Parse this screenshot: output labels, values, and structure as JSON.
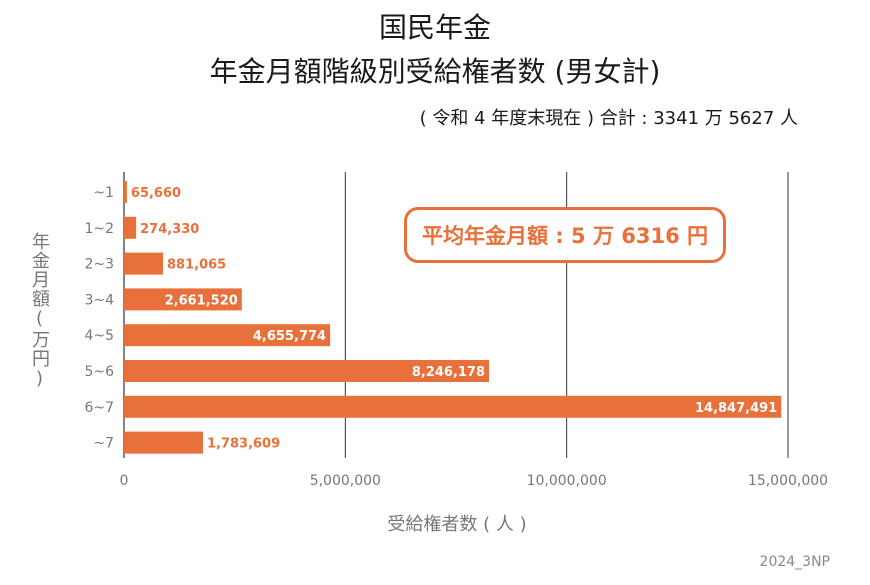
{
  "header": {
    "title_line1": "国民年金",
    "title_line2": "年金月額階級別受給権者数 (男女計)",
    "subtitle": "( 令和 4 年度末現在 ) 合計 : 3341 万 5627 人"
  },
  "callout": {
    "text": "平均年金月額 : 5 万 6316 円"
  },
  "source": "2024_3NP",
  "colors": {
    "bar": "#e8703a",
    "grid": "#333333",
    "axis_text": "#777777",
    "value_inside": "#ffffff"
  },
  "chart_data": {
    "type": "bar",
    "orientation": "horizontal",
    "categories": [
      "~1",
      "1~2",
      "2~3",
      "3~4",
      "4~5",
      "5~6",
      "6~7",
      "~7"
    ],
    "values": [
      65660,
      274330,
      881065,
      2661520,
      4655774,
      8246178,
      14847491,
      1783609
    ],
    "value_labels": [
      "65,660",
      "274,330",
      "881,065",
      "2,661,520",
      "4,655,774",
      "8,246,178",
      "14,847,491",
      "1,783,609"
    ],
    "xlim": [
      0,
      15000000
    ],
    "xticks": [
      0,
      5000000,
      10000000,
      15000000
    ],
    "xtick_labels": [
      "0",
      "5,000,000",
      "10,000,000",
      "15,000,000"
    ],
    "xlabel": "受給権者数 ( 人 )",
    "ylabel": "年金月額(万円)",
    "grid": true
  }
}
